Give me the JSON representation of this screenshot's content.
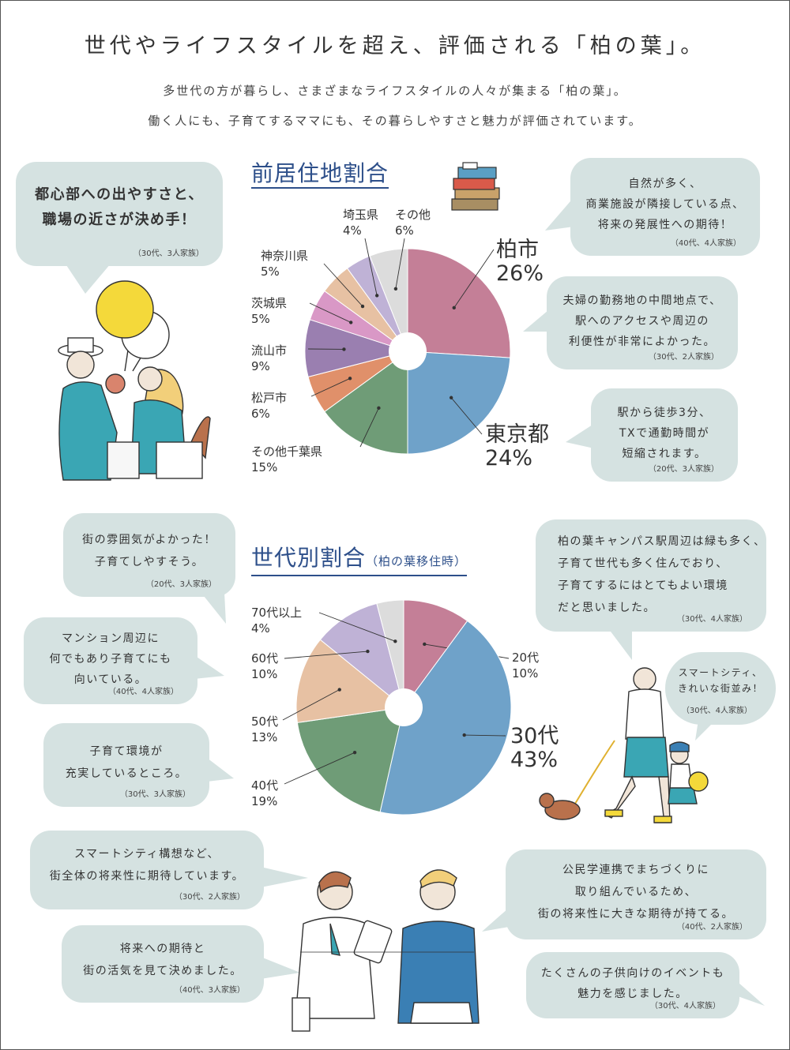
{
  "title": "世代やライフスタイルを超え、評価される「柏の葉」。",
  "lead": [
    "多世代の方が暮らし、さまざまなライフスタイルの人々が集まる「柏の葉」。",
    "働く人にも、子育てするママにも、その暮らしやすさと魅力が評価されています。"
  ],
  "chart_data": [
    {
      "type": "pie",
      "title": "前居住地割合",
      "categories": [
        "柏市",
        "東京都",
        "その他千葉県",
        "松戸市",
        "流山市",
        "茨城県",
        "神奈川県",
        "埼玉県",
        "その他"
      ],
      "values": [
        26,
        24,
        15,
        6,
        9,
        5,
        5,
        4,
        6
      ],
      "labels": [
        "26%",
        "24%",
        "15%",
        "6%",
        "9%",
        "5%",
        "5%",
        "4%",
        "6%"
      ],
      "colors": [
        "#c47f97",
        "#6fa2c9",
        "#6f9c77",
        "#e0906a",
        "#9a7fb0",
        "#d998c6",
        "#e7c1a3",
        "#bfb2d6",
        "#dcdcdc"
      ]
    },
    {
      "type": "pie",
      "title": "世代別割合",
      "subtitle": "（柏の葉移住時）",
      "categories": [
        "20代",
        "30代",
        "40代",
        "50代",
        "60代",
        "70代以上"
      ],
      "values": [
        10,
        43,
        19,
        13,
        10,
        4
      ],
      "labels": [
        "10%",
        "43%",
        "19%",
        "13%",
        "10%",
        "4%"
      ],
      "colors": [
        "#c47f97",
        "#6fa2c9",
        "#6f9c77",
        "#e7c1a3",
        "#bfb2d6",
        "#dcdcdc"
      ]
    }
  ],
  "quotes": {
    "q1": {
      "text": "都心部への出やすさと、\n職場の近さが決め手！",
      "attr": "（30代、3人家族）"
    },
    "q2": {
      "text": "自然が多く、\n商業施設が隣接している点、\n将来の発展性への期待！",
      "attr": "（40代、4人家族）"
    },
    "q3": {
      "text": "夫婦の勤務地の中間地点で、\n駅へのアクセスや周辺の\n利便性が非常によかった。",
      "attr": "（30代、2人家族）"
    },
    "q4": {
      "text": "駅から徒歩3分、\nTXで通勤時間が\n短縮されます。",
      "attr": "（20代、3人家族）"
    },
    "q5": {
      "text": "街の雰囲気がよかった！\n子育てしやすそう。",
      "attr": "（20代、3人家族）"
    },
    "q6": {
      "text": "マンション周辺に\n何でもあり子育てにも\n向いている。",
      "attr": "（40代、4人家族）"
    },
    "q7": {
      "text": "子育て環境が\n充実しているところ。",
      "attr": "（30代、3人家族）"
    },
    "q8": {
      "text": "柏の葉キャンパス駅周辺は緑も多く、\n子育て世代も多く住んでおり、\n子育てするにはとてもよい環境\nだと思いました。",
      "attr": "（30代、4人家族）"
    },
    "q9": {
      "text": "スマートシティ、\nきれいな街並み！",
      "attr": "（30代、4人家族）"
    },
    "q10": {
      "text": "スマートシティ構想など、\n街全体の将来性に期待しています。",
      "attr": "（30代、2人家族）"
    },
    "q11": {
      "text": "将来への期待と\n街の活気を見て決めました。",
      "attr": "（40代、3人家族）"
    },
    "q12": {
      "text": "公民学連携でまちづくりに\n取り組んでいるため、\n街の将来性に大きな期待が持てる。",
      "attr": "（40代、2人家族）"
    },
    "q13": {
      "text": "たくさんの子供向けのイベントも\n魅力を感じました。",
      "attr": "（30代、4人家族）"
    }
  },
  "colors": {
    "title_blue": "#2d4f8a",
    "bubble": "#d5e2e1"
  }
}
